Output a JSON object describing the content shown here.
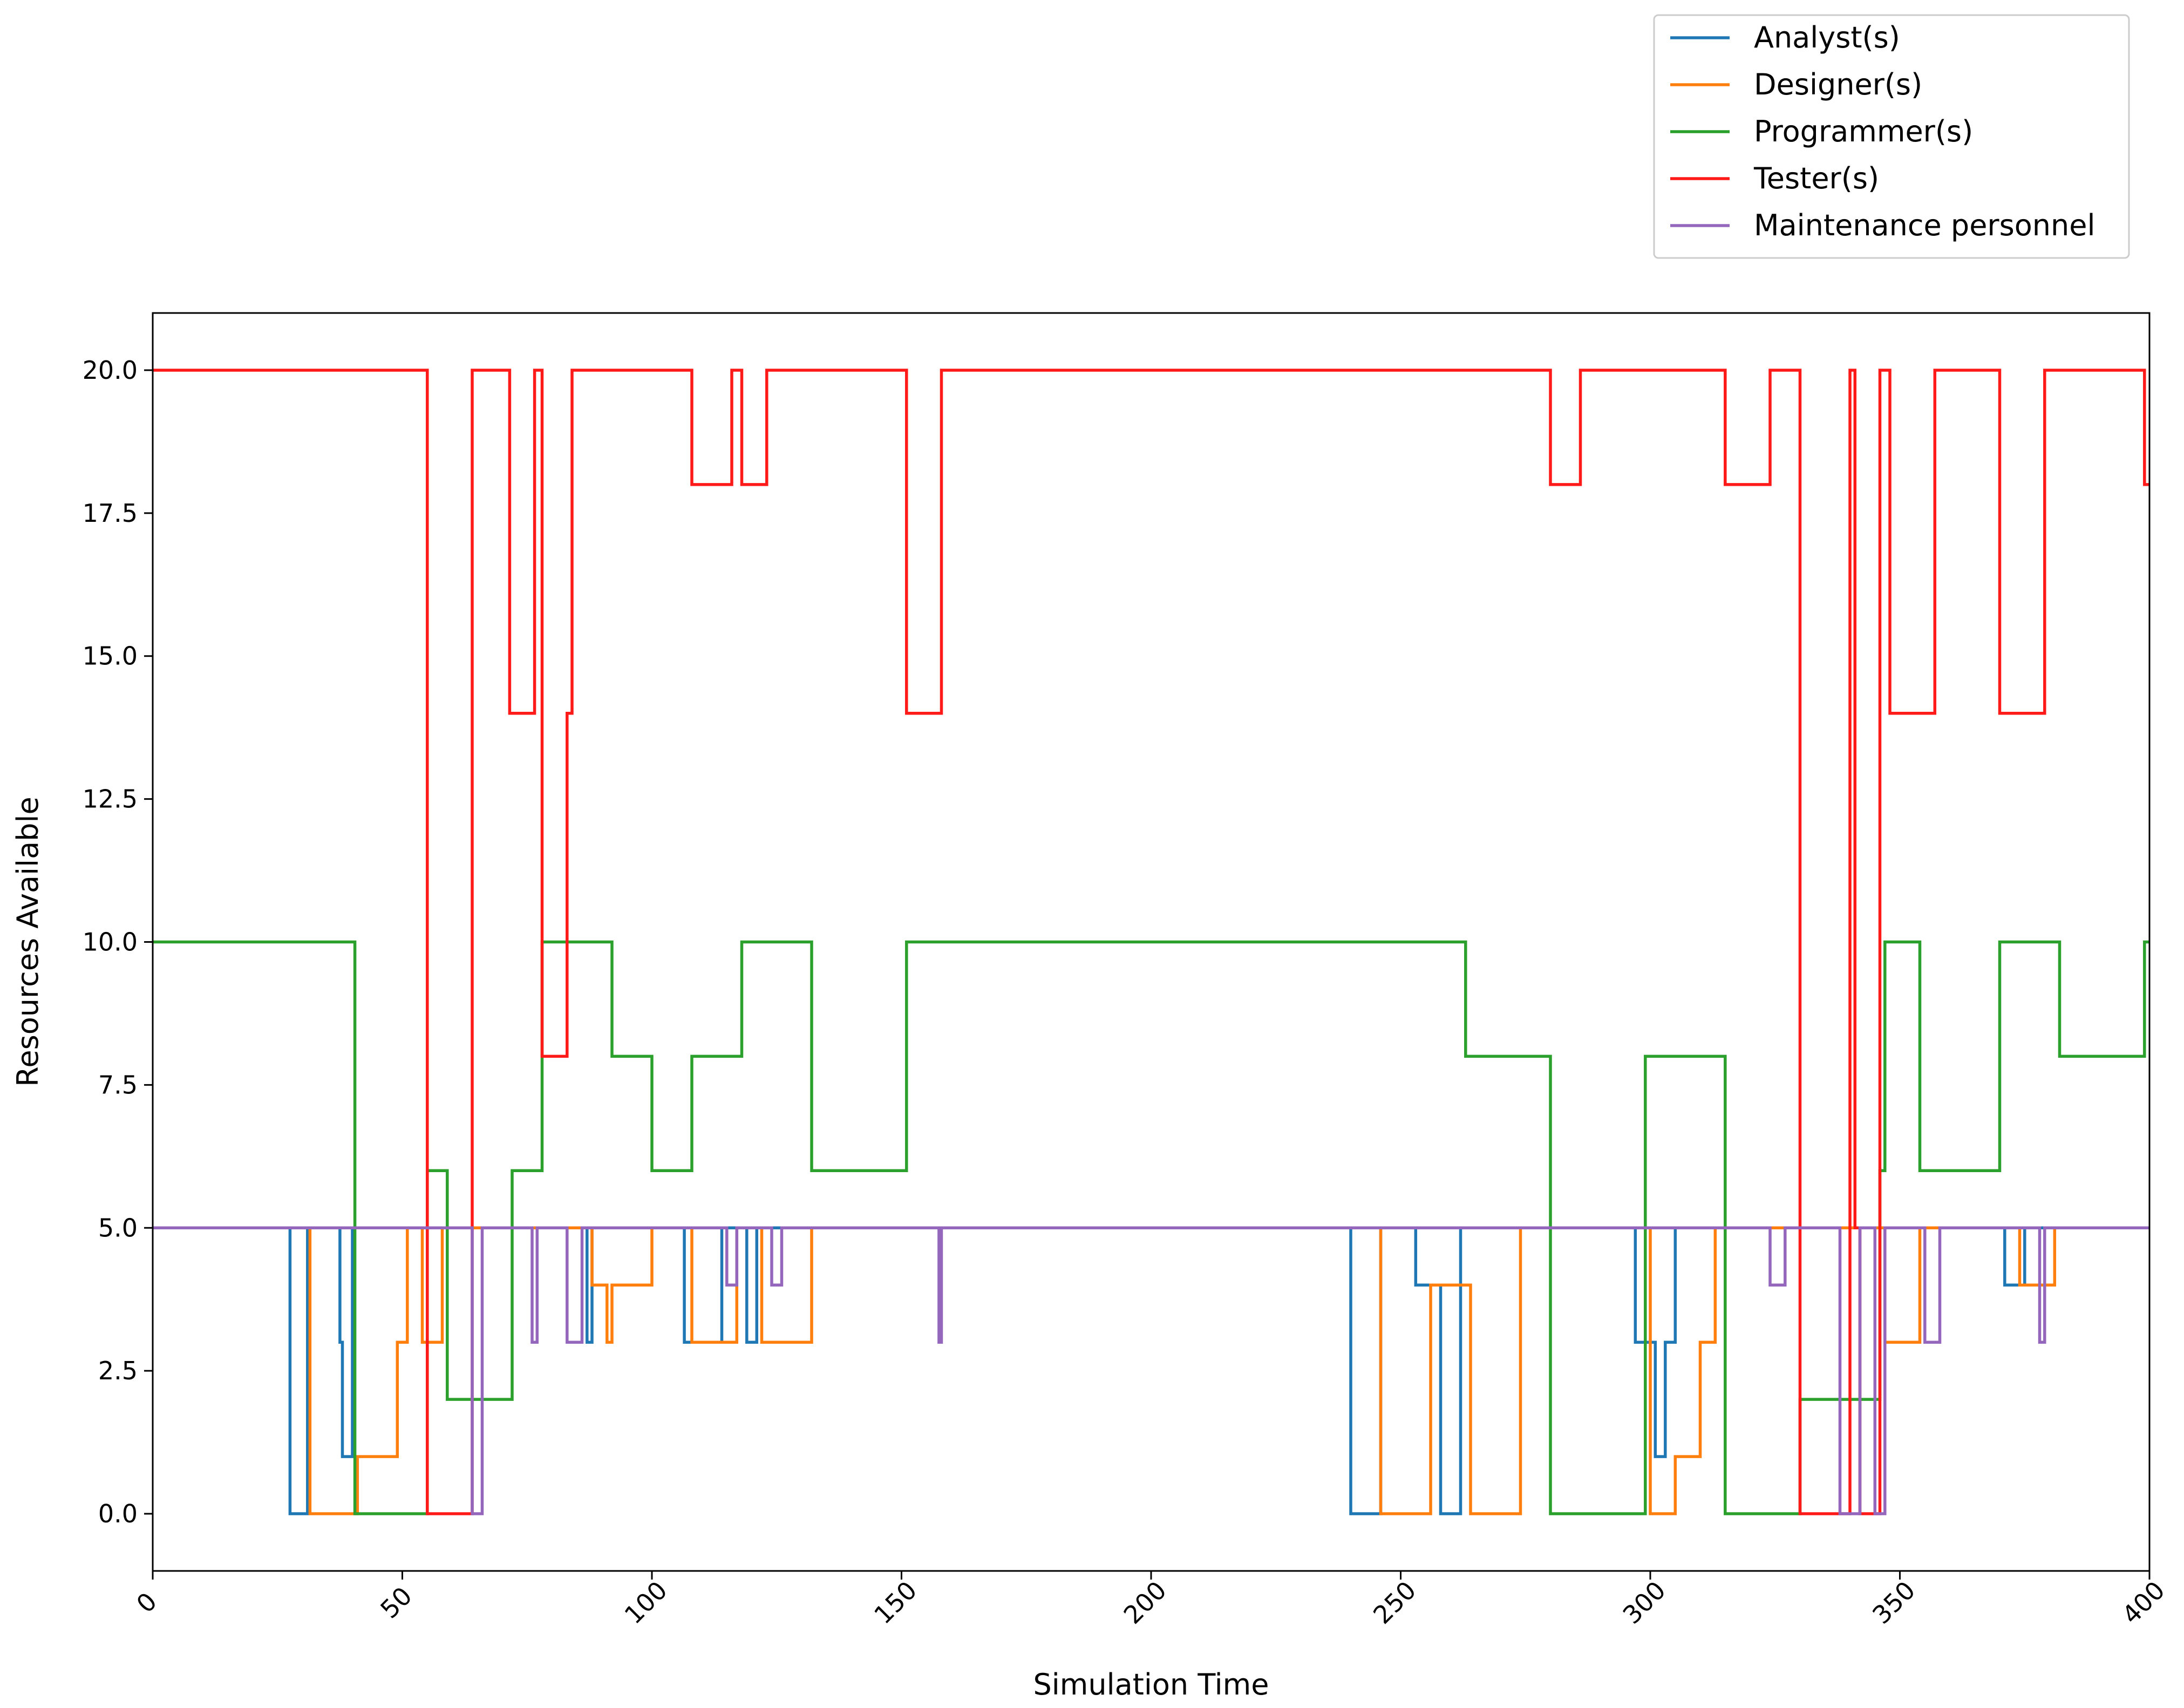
{
  "chart_data": {
    "type": "line",
    "step": "post",
    "title": "",
    "xlabel": "Simulation Time",
    "ylabel": "Resources Available",
    "xlim": [
      0,
      400
    ],
    "ylim": [
      -1,
      21
    ],
    "xticks": [
      0,
      50,
      100,
      150,
      200,
      250,
      300,
      350,
      400
    ],
    "yticks": [
      0.0,
      2.5,
      5.0,
      7.5,
      10.0,
      12.5,
      15.0,
      17.5,
      20.0
    ],
    "xtick_labels": [
      "0",
      "50",
      "100",
      "150",
      "200",
      "250",
      "300",
      "350",
      "400"
    ],
    "ytick_labels": [
      "0.0",
      "2.5",
      "5.0",
      "7.5",
      "10.0",
      "12.5",
      "15.0",
      "17.5",
      "20.0"
    ],
    "grid": false,
    "legend_position": "above plot, top-right",
    "series": [
      {
        "name": "Analyst(s)",
        "color": "#1f77b4",
        "points": [
          [
            0,
            5
          ],
          [
            27.5,
            5
          ],
          [
            27.5,
            0
          ],
          [
            31,
            0
          ],
          [
            31,
            5
          ],
          [
            37.5,
            5
          ],
          [
            37.5,
            3
          ],
          [
            38,
            3
          ],
          [
            38,
            1
          ],
          [
            40,
            1
          ],
          [
            40,
            5
          ],
          [
            87,
            5
          ],
          [
            87,
            3
          ],
          [
            88,
            3
          ],
          [
            88,
            5
          ],
          [
            106.5,
            5
          ],
          [
            106.5,
            3
          ],
          [
            114,
            3
          ],
          [
            114,
            5
          ],
          [
            119,
            5
          ],
          [
            119,
            3
          ],
          [
            121,
            3
          ],
          [
            121,
            5
          ],
          [
            240,
            5
          ],
          [
            240,
            0
          ],
          [
            246,
            0
          ],
          [
            246,
            5
          ],
          [
            253,
            5
          ],
          [
            253,
            4
          ],
          [
            258,
            4
          ],
          [
            258,
            0
          ],
          [
            262,
            0
          ],
          [
            262,
            5
          ],
          [
            297,
            5
          ],
          [
            297,
            3
          ],
          [
            301,
            3
          ],
          [
            301,
            1
          ],
          [
            303,
            1
          ],
          [
            303,
            3
          ],
          [
            305,
            3
          ],
          [
            305,
            5
          ],
          [
            371,
            5
          ],
          [
            371,
            4
          ],
          [
            375,
            4
          ],
          [
            375,
            5
          ],
          [
            400,
            5
          ]
        ]
      },
      {
        "name": "Designer(s)",
        "color": "#ff7f0e",
        "points": [
          [
            0,
            5
          ],
          [
            31.5,
            5
          ],
          [
            31.5,
            0
          ],
          [
            41,
            0
          ],
          [
            41,
            1
          ],
          [
            49,
            1
          ],
          [
            49,
            3
          ],
          [
            51,
            3
          ],
          [
            51,
            5
          ],
          [
            54,
            5
          ],
          [
            54,
            3
          ],
          [
            58,
            3
          ],
          [
            58,
            5
          ],
          [
            88,
            5
          ],
          [
            88,
            4
          ],
          [
            91,
            4
          ],
          [
            91,
            3
          ],
          [
            92,
            3
          ],
          [
            92,
            4
          ],
          [
            100,
            4
          ],
          [
            100,
            5
          ],
          [
            108,
            5
          ],
          [
            108,
            3
          ],
          [
            117,
            3
          ],
          [
            117,
            5
          ],
          [
            122,
            5
          ],
          [
            122,
            3
          ],
          [
            132,
            3
          ],
          [
            132,
            5
          ],
          [
            246,
            5
          ],
          [
            246,
            0
          ],
          [
            256,
            0
          ],
          [
            256,
            4
          ],
          [
            264,
            4
          ],
          [
            264,
            0
          ],
          [
            274,
            0
          ],
          [
            274,
            5
          ],
          [
            300,
            5
          ],
          [
            300,
            0
          ],
          [
            305,
            0
          ],
          [
            305,
            1
          ],
          [
            310,
            1
          ],
          [
            310,
            3
          ],
          [
            313,
            3
          ],
          [
            313,
            5
          ],
          [
            347,
            5
          ],
          [
            347,
            3
          ],
          [
            354,
            3
          ],
          [
            354,
            5
          ],
          [
            374,
            5
          ],
          [
            374,
            4
          ],
          [
            381,
            4
          ],
          [
            381,
            5
          ],
          [
            400,
            5
          ]
        ]
      },
      {
        "name": "Programmer(s)",
        "color": "#2ca02c",
        "points": [
          [
            0,
            10
          ],
          [
            40.5,
            10
          ],
          [
            40.5,
            0
          ],
          [
            55,
            0
          ],
          [
            55,
            6
          ],
          [
            59,
            6
          ],
          [
            59,
            2
          ],
          [
            72,
            2
          ],
          [
            72,
            6
          ],
          [
            78,
            6
          ],
          [
            78,
            10
          ],
          [
            92,
            10
          ],
          [
            92,
            8
          ],
          [
            100,
            8
          ],
          [
            100,
            6
          ],
          [
            108,
            6
          ],
          [
            108,
            8
          ],
          [
            118,
            8
          ],
          [
            118,
            10
          ],
          [
            132,
            10
          ],
          [
            132,
            6
          ],
          [
            151,
            6
          ],
          [
            151,
            10
          ],
          [
            263,
            10
          ],
          [
            263,
            8
          ],
          [
            280,
            8
          ],
          [
            280,
            0
          ],
          [
            299,
            0
          ],
          [
            299,
            8
          ],
          [
            315,
            8
          ],
          [
            315,
            0
          ],
          [
            330,
            0
          ],
          [
            330,
            2
          ],
          [
            346,
            2
          ],
          [
            346,
            6
          ],
          [
            347,
            6
          ],
          [
            347,
            10
          ],
          [
            354,
            10
          ],
          [
            354,
            6
          ],
          [
            370,
            6
          ],
          [
            370,
            10
          ],
          [
            382,
            10
          ],
          [
            382,
            8
          ],
          [
            399,
            8
          ],
          [
            399,
            10
          ],
          [
            400,
            10
          ]
        ]
      },
      {
        "name": "Tester(s)",
        "color": "#ff1a1a",
        "points": [
          [
            0,
            20
          ],
          [
            55,
            20
          ],
          [
            55,
            0
          ],
          [
            64,
            0
          ],
          [
            64,
            20
          ],
          [
            71.5,
            20
          ],
          [
            71.5,
            14
          ],
          [
            76.5,
            14
          ],
          [
            76.5,
            20
          ],
          [
            78,
            20
          ],
          [
            78,
            8
          ],
          [
            83,
            8
          ],
          [
            83,
            14
          ],
          [
            84,
            14
          ],
          [
            84,
            20
          ],
          [
            108,
            20
          ],
          [
            108,
            18
          ],
          [
            116,
            18
          ],
          [
            116,
            20
          ],
          [
            118,
            20
          ],
          [
            118,
            18
          ],
          [
            123,
            18
          ],
          [
            123,
            20
          ],
          [
            151,
            20
          ],
          [
            151,
            14
          ],
          [
            158,
            14
          ],
          [
            158,
            20
          ],
          [
            280,
            20
          ],
          [
            280,
            18
          ],
          [
            286,
            18
          ],
          [
            286,
            20
          ],
          [
            315,
            20
          ],
          [
            315,
            18
          ],
          [
            324,
            18
          ],
          [
            324,
            20
          ],
          [
            330,
            20
          ],
          [
            330,
            0
          ],
          [
            340,
            0
          ],
          [
            340,
            20
          ],
          [
            341,
            20
          ],
          [
            341,
            5
          ],
          [
            342,
            5
          ],
          [
            342,
            0
          ],
          [
            346,
            0
          ],
          [
            346,
            20
          ],
          [
            348,
            20
          ],
          [
            348,
            14
          ],
          [
            357,
            14
          ],
          [
            357,
            20
          ],
          [
            370,
            20
          ],
          [
            370,
            14
          ],
          [
            379,
            14
          ],
          [
            379,
            20
          ],
          [
            399,
            20
          ],
          [
            399,
            18
          ],
          [
            400,
            18
          ]
        ]
      },
      {
        "name": "Maintenance personnel",
        "color": "#9467bd",
        "points": [
          [
            0,
            5
          ],
          [
            64,
            5
          ],
          [
            64,
            0
          ],
          [
            66,
            0
          ],
          [
            66,
            5
          ],
          [
            76,
            5
          ],
          [
            76,
            3
          ],
          [
            77,
            3
          ],
          [
            77,
            5
          ],
          [
            83,
            5
          ],
          [
            83,
            3
          ],
          [
            86,
            3
          ],
          [
            86,
            5
          ],
          [
            115,
            5
          ],
          [
            115,
            4
          ],
          [
            117,
            4
          ],
          [
            117,
            5
          ],
          [
            124,
            5
          ],
          [
            124,
            4
          ],
          [
            126,
            4
          ],
          [
            126,
            5
          ],
          [
            157.5,
            5
          ],
          [
            157.5,
            3
          ],
          [
            158,
            3
          ],
          [
            158,
            5
          ],
          [
            324,
            5
          ],
          [
            324,
            4
          ],
          [
            327,
            4
          ],
          [
            327,
            5
          ],
          [
            338,
            5
          ],
          [
            338,
            0
          ],
          [
            342,
            0
          ],
          [
            342,
            5
          ],
          [
            345,
            5
          ],
          [
            345,
            0
          ],
          [
            347,
            0
          ],
          [
            347,
            5
          ],
          [
            355,
            5
          ],
          [
            355,
            3
          ],
          [
            358,
            3
          ],
          [
            358,
            5
          ],
          [
            378,
            5
          ],
          [
            378,
            3
          ],
          [
            379,
            3
          ],
          [
            379,
            5
          ],
          [
            400,
            5
          ]
        ]
      }
    ]
  }
}
